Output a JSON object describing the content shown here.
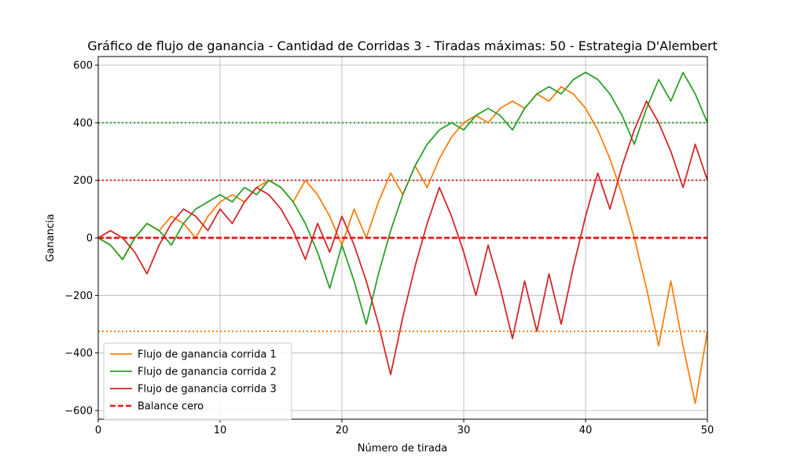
{
  "chart_data": {
    "type": "line",
    "title": "Gráfico de flujo de ganancia - Cantidad de Corridas 3 - Tiradas máximas: 50 - Estrategia D'Alembert",
    "xlabel": "Número de tirada",
    "ylabel": "Ganancia",
    "xlim": [
      0,
      50
    ],
    "ylim": [
      -630,
      630
    ],
    "xticks": [
      0,
      10,
      20,
      30,
      40,
      50
    ],
    "yticks": [
      -600,
      -400,
      -200,
      0,
      200,
      400,
      600
    ],
    "xtick_labels": [
      "0",
      "10",
      "20",
      "30",
      "40",
      "50"
    ],
    "ytick_labels": [
      "−600",
      "−400",
      "−200",
      "0",
      "200",
      "400",
      "600"
    ],
    "grid": true,
    "legend_position": "lower-left",
    "x": [
      0,
      1,
      2,
      3,
      4,
      5,
      6,
      7,
      8,
      9,
      10,
      11,
      12,
      13,
      14,
      15,
      16,
      17,
      18,
      19,
      20,
      21,
      22,
      23,
      24,
      25,
      26,
      27,
      28,
      29,
      30,
      31,
      32,
      33,
      34,
      35,
      36,
      37,
      38,
      39,
      40,
      41,
      42,
      43,
      44,
      45,
      46,
      47,
      48,
      49,
      50
    ],
    "series": [
      {
        "name": "Flujo de ganancia corrida 1",
        "color": "#ff7f0e",
        "values": [
          0,
          -25,
          -75,
          0,
          50,
          25,
          75,
          50,
          0,
          75,
          125,
          150,
          125,
          175,
          200,
          175,
          125,
          200,
          150,
          75,
          -25,
          100,
          0,
          125,
          225,
          150,
          250,
          175,
          275,
          350,
          400,
          425,
          400,
          450,
          475,
          450,
          500,
          475,
          525,
          500,
          450,
          375,
          275,
          150,
          0,
          -175,
          -375,
          -150,
          -375,
          -575,
          -325
        ]
      },
      {
        "name": "Flujo de ganancia corrida 2",
        "color": "#2ca02c",
        "values": [
          0,
          -25,
          -75,
          0,
          50,
          25,
          -25,
          50,
          100,
          125,
          150,
          125,
          175,
          150,
          200,
          175,
          125,
          50,
          -50,
          -175,
          -25,
          -150,
          -300,
          -125,
          25,
          150,
          250,
          325,
          375,
          400,
          375,
          425,
          450,
          425,
          375,
          450,
          500,
          525,
          500,
          550,
          575,
          550,
          500,
          425,
          325,
          450,
          550,
          475,
          575,
          500,
          400
        ]
      },
      {
        "name": "Flujo de ganancia corrida 3",
        "color": "#d62728",
        "values": [
          0,
          25,
          0,
          -50,
          -125,
          -25,
          50,
          100,
          75,
          25,
          100,
          50,
          125,
          175,
          150,
          100,
          25,
          -75,
          50,
          -50,
          75,
          -25,
          -150,
          -300,
          -475,
          -275,
          -100,
          50,
          175,
          75,
          -50,
          -200,
          -25,
          -175,
          -350,
          -150,
          -325,
          -125,
          -300,
          -100,
          75,
          225,
          100,
          250,
          375,
          475,
          400,
          300,
          175,
          325,
          200
        ]
      }
    ],
    "reference_lines": [
      {
        "name": "Balance cero",
        "y": 0,
        "color": "#e41a1c",
        "style": "dashed"
      },
      {
        "y": 400,
        "color": "#2ca02c",
        "style": "dotted"
      },
      {
        "y": 200,
        "color": "#d62728",
        "style": "dotted"
      },
      {
        "y": -325,
        "color": "#ff7f0e",
        "style": "dotted"
      }
    ]
  }
}
